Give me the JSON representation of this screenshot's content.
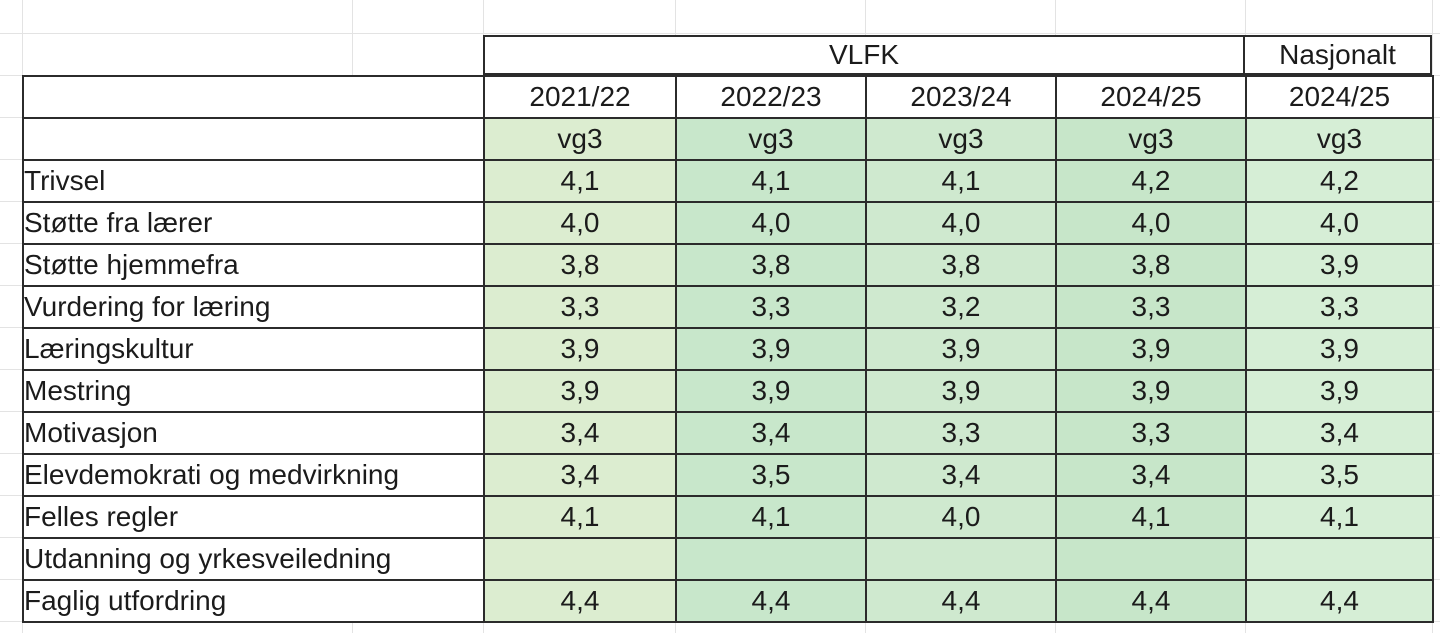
{
  "sheet": {
    "header_groups": {
      "vlfk": "VLFK",
      "nasjonalt": "Nasjonalt"
    },
    "year_headers": [
      "2021/22",
      "2022/23",
      "2023/24",
      "2024/25",
      "2024/25"
    ],
    "level_row": [
      "vg3",
      "vg3",
      "vg3",
      "vg3",
      "vg3"
    ],
    "rows": [
      {
        "label": "Trivsel",
        "values": [
          "4,1",
          "4,1",
          "4,1",
          "4,2",
          "4,2"
        ]
      },
      {
        "label": "Støtte fra lærer",
        "values": [
          "4,0",
          "4,0",
          "4,0",
          "4,0",
          "4,0"
        ]
      },
      {
        "label": "Støtte hjemmefra",
        "values": [
          "3,8",
          "3,8",
          "3,8",
          "3,8",
          "3,9"
        ]
      },
      {
        "label": "Vurdering for læring",
        "values": [
          "3,3",
          "3,3",
          "3,2",
          "3,3",
          "3,3"
        ]
      },
      {
        "label": "Læringskultur",
        "values": [
          "3,9",
          "3,9",
          "3,9",
          "3,9",
          "3,9"
        ]
      },
      {
        "label": "Mestring",
        "values": [
          "3,9",
          "3,9",
          "3,9",
          "3,9",
          "3,9"
        ]
      },
      {
        "label": "Motivasjon",
        "values": [
          "3,4",
          "3,4",
          "3,3",
          "3,3",
          "3,4"
        ]
      },
      {
        "label": "Elevdemokrati og medvirkning",
        "values": [
          "3,4",
          "3,5",
          "3,4",
          "3,4",
          "3,5"
        ]
      },
      {
        "label": "Felles regler",
        "values": [
          "4,1",
          "4,1",
          "4,0",
          "4,1",
          "4,1"
        ]
      },
      {
        "label": "Utdanning og yrkesveiledning",
        "values": [
          "",
          "",
          "",
          "",
          ""
        ]
      },
      {
        "label": "Faglig utfordring",
        "values": [
          "4,4",
          "4,4",
          "4,4",
          "4,4",
          "4,4"
        ]
      }
    ],
    "colors": {
      "column_fills": [
        "#dcedd0",
        "#c8e7cb",
        "#cfe9cf",
        "#c7e6c9",
        "#d6eed6"
      ],
      "border_dark": "#2b2b2b",
      "gridline": "#e3e3e3",
      "text": "#1b1b1b",
      "background": "#ffffff"
    }
  }
}
